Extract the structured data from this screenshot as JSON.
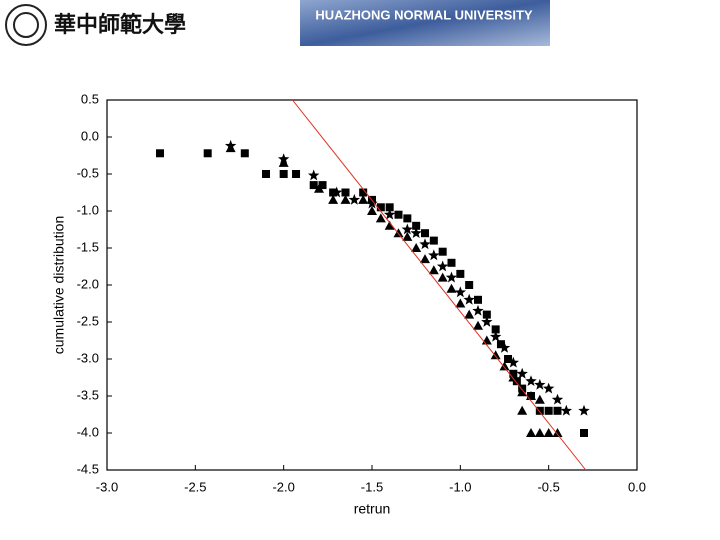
{
  "header": {
    "school_name_cn": "華中師範大學",
    "banner_text": "HUAZHONG NORMAL UNIVERSITY"
  },
  "chart_data": {
    "type": "scatter",
    "x_label": "retrun",
    "y_label": "cumulative distribution",
    "xlim": [
      -3.0,
      0.0
    ],
    "ylim": [
      -4.5,
      0.5
    ],
    "xticks": [
      {
        "value": -3,
        "label": "-3.0"
      },
      -2.5,
      {
        "value": -2,
        "label": "-2.0"
      },
      -1.5,
      {
        "value": -1,
        "label": "-1.0"
      },
      -0.5,
      {
        "value": 0,
        "label": "0.0"
      }
    ],
    "yticks": [
      0.5,
      {
        "value": 0,
        "label": "0.0"
      },
      -0.5,
      {
        "value": -1,
        "label": "-1.0"
      },
      -1.5,
      {
        "value": -2,
        "label": "-2.0"
      },
      -2.5,
      {
        "value": -3,
        "label": "-3.0"
      },
      -3.5,
      {
        "value": -4,
        "label": "-4.0"
      },
      -4.5
    ],
    "series": [
      {
        "marker": "square",
        "color": "#000000",
        "x": [
          -2.7,
          -2.43,
          -2.22,
          -2.1,
          -2.0,
          -1.93,
          -1.83,
          -1.78,
          -1.72,
          -1.65,
          -1.55,
          -1.5,
          -1.45,
          -1.4,
          -1.35,
          -1.3,
          -1.25,
          -1.2,
          -1.15,
          -1.1,
          -1.05,
          -1.0,
          -0.95,
          -0.9,
          -0.85,
          -0.8,
          -0.77,
          -0.73,
          -0.7,
          -0.68,
          -0.65,
          -0.6,
          -0.55,
          -0.5,
          -0.45,
          -0.3
        ],
        "values": [
          -0.22,
          -0.22,
          -0.22,
          -0.5,
          -0.5,
          -0.5,
          -0.65,
          -0.65,
          -0.75,
          -0.75,
          -0.75,
          -0.85,
          -0.95,
          -0.95,
          -1.05,
          -1.1,
          -1.2,
          -1.3,
          -1.4,
          -1.55,
          -1.7,
          -1.85,
          -2.0,
          -2.2,
          -2.4,
          -2.6,
          -2.8,
          -3.0,
          -3.2,
          -3.3,
          -3.4,
          -3.5,
          -3.7,
          -3.7,
          -3.7,
          -4.0
        ]
      },
      {
        "marker": "triangle",
        "color": "#000000",
        "x": [
          -2.3,
          -2.0,
          -1.8,
          -1.72,
          -1.65,
          -1.55,
          -1.5,
          -1.45,
          -1.4,
          -1.35,
          -1.3,
          -1.25,
          -1.2,
          -1.15,
          -1.1,
          -1.05,
          -1.0,
          -0.95,
          -0.9,
          -0.85,
          -0.8,
          -0.75,
          -0.7,
          -0.65,
          -0.6,
          -0.55,
          -0.65,
          -0.6,
          -0.55,
          -0.5,
          -0.45
        ],
        "values": [
          -0.15,
          -0.35,
          -0.7,
          -0.85,
          -0.85,
          -0.85,
          -1.0,
          -1.1,
          -1.2,
          -1.3,
          -1.35,
          -1.5,
          -1.65,
          -1.8,
          -1.9,
          -2.05,
          -2.25,
          -2.4,
          -2.55,
          -2.75,
          -2.95,
          -3.1,
          -3.25,
          -3.45,
          -3.5,
          -3.55,
          -3.7,
          -4.0,
          -4.0,
          -4.0,
          -4.0
        ]
      },
      {
        "marker": "star",
        "color": "#000000",
        "x": [
          -2.3,
          -2.0,
          -1.83,
          -1.7,
          -1.6,
          -1.5,
          -1.4,
          -1.3,
          -1.25,
          -1.2,
          -1.15,
          -1.1,
          -1.05,
          -1.0,
          -0.95,
          -0.9,
          -0.85,
          -0.8,
          -0.75,
          -0.7,
          -0.65,
          -0.6,
          -0.55,
          -0.5,
          -0.45,
          -0.4,
          -0.3
        ],
        "values": [
          -0.12,
          -0.3,
          -0.52,
          -0.75,
          -0.85,
          -0.9,
          -1.05,
          -1.25,
          -1.3,
          -1.45,
          -1.6,
          -1.75,
          -1.9,
          -2.1,
          -2.2,
          -2.35,
          -2.5,
          -2.7,
          -2.85,
          -3.05,
          -3.2,
          -3.3,
          -3.35,
          -3.4,
          -3.55,
          -3.7,
          -3.7
        ]
      },
      {
        "marker": "line",
        "color": "#e03020",
        "x": [
          -1.95,
          -0.29
        ],
        "values": [
          0.5,
          -4.5
        ]
      }
    ]
  }
}
